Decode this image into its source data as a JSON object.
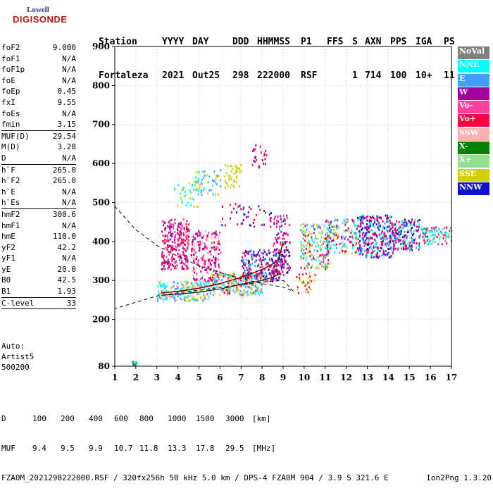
{
  "logo": {
    "line1": "Lowell",
    "line2": "DIGISONDE"
  },
  "header": {
    "row1": [
      "Station",
      "YYYY",
      "DAY",
      "DDD",
      "HHMMSS",
      "P1",
      "FFS",
      "S",
      "AXN",
      "PPS",
      "IGA",
      "PS"
    ],
    "row2": [
      "Fortaleza",
      "2021",
      "Out25",
      "298",
      "222000",
      "RSF",
      "1",
      "714",
      "100",
      "10+",
      "11"
    ]
  },
  "params": [
    {
      "k": "foF2",
      "v": "9.000"
    },
    {
      "k": "foF1",
      "v": "N/A"
    },
    {
      "k": "foF1p",
      "v": "N/A"
    },
    {
      "k": "foE",
      "v": "N/A"
    },
    {
      "k": "foEp",
      "v": "0.45"
    },
    {
      "k": "fxI",
      "v": "9.55"
    },
    {
      "k": "foEs",
      "v": "N/A"
    },
    {
      "k": "fmin",
      "v": "3.15"
    },
    {
      "k": "sep"
    },
    {
      "k": "MUF(D)",
      "v": "29.54"
    },
    {
      "k": "M(D)",
      "v": "3.28"
    },
    {
      "k": "D",
      "v": "N/A"
    },
    {
      "k": "sep"
    },
    {
      "k": "h`F",
      "v": "265.0"
    },
    {
      "k": "h`F2",
      "v": "265.0"
    },
    {
      "k": "h`E",
      "v": "N/A"
    },
    {
      "k": "h`Es",
      "v": "N/A"
    },
    {
      "k": "sep"
    },
    {
      "k": "hmF2",
      "v": "300.6"
    },
    {
      "k": "hmF1",
      "v": "N/A"
    },
    {
      "k": "hmE",
      "v": "110.0"
    },
    {
      "k": "yF2",
      "v": "42.2"
    },
    {
      "k": "yF1",
      "v": "N/A"
    },
    {
      "k": "yE",
      "v": "20.0"
    },
    {
      "k": "B0",
      "v": "42.5"
    },
    {
      "k": "B1",
      "v": "1.93"
    },
    {
      "k": "sep"
    },
    {
      "k": "C-level",
      "v": "33"
    },
    {
      "k": "sep"
    }
  ],
  "auto": [
    "Auto:",
    "Artist5",
    "500200"
  ],
  "legend": [
    {
      "label": "NoVal",
      "bg": "#808080",
      "fg": "#ffffff"
    },
    {
      "label": "NNE",
      "bg": "#00ffff",
      "fg": "#ffffff"
    },
    {
      "label": "E",
      "bg": "#40a0ff",
      "fg": "#ffffff"
    },
    {
      "label": "W",
      "bg": "#a000a0",
      "fg": "#ffffff"
    },
    {
      "label": "Vo-",
      "bg": "#ff40a0",
      "fg": "#ffffff"
    },
    {
      "label": "Vo+",
      "bg": "#ff0040",
      "fg": "#ffffff"
    },
    {
      "label": "SSW",
      "bg": "#ffb0b0",
      "fg": "#ffffff"
    },
    {
      "label": "X-",
      "bg": "#008000",
      "fg": "#ffffff"
    },
    {
      "label": "X+",
      "bg": "#90e090",
      "fg": "#ffffff"
    },
    {
      "label": "SSE",
      "bg": "#d0d000",
      "fg": "#ffffff"
    },
    {
      "label": "NNW",
      "bg": "#1010d0",
      "fg": "#ffffff"
    }
  ],
  "footer": {
    "d_label": "D",
    "d_values": [
      "100",
      "200",
      "400",
      "600",
      "800",
      "1000",
      "1500",
      "3000",
      "[km]"
    ],
    "muf_label": "MUF",
    "muf_values": [
      "9.4",
      "9.5",
      "9.9",
      "10.7",
      "11.8",
      "13.3",
      "17.8",
      "29.5",
      "[MHz]"
    ],
    "info": "FZA0M_2021298222000.RSF / 320fx256h 50 kHz 5.0 km / DPS-4 FZA0M 904 / 3.9 S 321.6 E",
    "version": "Ion2Png 1.3.20"
  },
  "chart_data": {
    "type": "scatter",
    "xlim": [
      1,
      17
    ],
    "ylim": [
      80,
      900
    ],
    "xticks": [
      1,
      2,
      3,
      4,
      5,
      6,
      7,
      8,
      9,
      10,
      11,
      12,
      13,
      14,
      15,
      16,
      17
    ],
    "yticks": [
      80,
      200,
      300,
      400,
      500,
      600,
      700,
      800,
      900
    ],
    "grid": true,
    "legend_position": "right",
    "trace_solid": [
      [
        3.2,
        268
      ],
      [
        4,
        272
      ],
      [
        5,
        280
      ],
      [
        6,
        292
      ],
      [
        7,
        308
      ],
      [
        7.5,
        318
      ],
      [
        8,
        328
      ],
      [
        8.5,
        342
      ],
      [
        8.8,
        355
      ],
      [
        9.0,
        400
      ]
    ],
    "trace_lower": [
      [
        3.2,
        262
      ],
      [
        4,
        265
      ],
      [
        5,
        270
      ],
      [
        6,
        278
      ],
      [
        7,
        290
      ],
      [
        7.5,
        295
      ],
      [
        8,
        300
      ],
      [
        8.5,
        308
      ],
      [
        8.9,
        318
      ]
    ],
    "trace_dashed": [
      [
        1,
        490
      ],
      [
        2,
        430
      ],
      [
        3,
        390
      ],
      [
        4,
        362
      ],
      [
        5,
        338
      ],
      [
        6,
        320
      ],
      [
        7,
        305
      ],
      [
        8,
        292
      ],
      [
        9,
        283
      ],
      [
        9.5,
        272
      ],
      [
        9.0,
        300
      ],
      [
        8,
        296
      ],
      [
        6,
        282
      ],
      [
        4,
        268
      ],
      [
        3,
        260
      ],
      [
        2,
        244
      ],
      [
        1,
        228
      ]
    ],
    "clusters": [
      {
        "x": [
          1.8,
          2.0
        ],
        "y": [
          85,
          95
        ],
        "colors": [
          "#00ffff",
          "#40a0ff",
          "#008000"
        ],
        "n": 18
      },
      {
        "x": [
          3.2,
          4.5
        ],
        "y": [
          330,
          460
        ],
        "colors": [
          "#a000a0",
          "#ff40a0",
          "#ff0040"
        ],
        "n": 260
      },
      {
        "x": [
          4.6,
          6.0
        ],
        "y": [
          300,
          430
        ],
        "colors": [
          "#a000a0",
          "#ffb0b0",
          "#ff40a0",
          "#ff0040"
        ],
        "n": 200
      },
      {
        "x": [
          3.0,
          5.5
        ],
        "y": [
          250,
          300
        ],
        "colors": [
          "#40a0ff",
          "#00ffff",
          "#d0d000",
          "#ffb0b0"
        ],
        "n": 220
      },
      {
        "x": [
          5.5,
          8.0
        ],
        "y": [
          265,
          320
        ],
        "colors": [
          "#d0d000",
          "#40a0ff",
          "#00ffff",
          "#ffb0b0",
          "#ff0040"
        ],
        "n": 260
      },
      {
        "x": [
          7.0,
          9.0
        ],
        "y": [
          300,
          380
        ],
        "colors": [
          "#ff0040",
          "#a000a0",
          "#1010d0",
          "#40a0ff"
        ],
        "n": 240
      },
      {
        "x": [
          8.5,
          9.3
        ],
        "y": [
          320,
          470
        ],
        "colors": [
          "#a000a0",
          "#ff0040",
          "#1010d0",
          "#ff40a0"
        ],
        "n": 120
      },
      {
        "x": [
          3.8,
          5.0
        ],
        "y": [
          490,
          560
        ],
        "colors": [
          "#d0d000",
          "#00ffff"
        ],
        "n": 40
      },
      {
        "x": [
          4.8,
          6.0
        ],
        "y": [
          520,
          590
        ],
        "colors": [
          "#d0d000",
          "#00ffff",
          "#40a0ff"
        ],
        "n": 50
      },
      {
        "x": [
          6.2,
          7.0
        ],
        "y": [
          540,
          600
        ],
        "colors": [
          "#d0d000"
        ],
        "n": 45
      },
      {
        "x": [
          7.5,
          8.2
        ],
        "y": [
          590,
          650
        ],
        "colors": [
          "#ff0040",
          "#a000a0"
        ],
        "n": 25
      },
      {
        "x": [
          6.0,
          8.5
        ],
        "y": [
          440,
          500
        ],
        "colors": [
          "#1010d0",
          "#a000a0",
          "#ff0040"
        ],
        "n": 45
      },
      {
        "x": [
          9.8,
          11.2
        ],
        "y": [
          330,
          450
        ],
        "colors": [
          "#40a0ff",
          "#00ffff",
          "#90e090",
          "#ff0040",
          "#d0d000"
        ],
        "n": 180
      },
      {
        "x": [
          11.0,
          12.5
        ],
        "y": [
          370,
          460
        ],
        "colors": [
          "#00ffff",
          "#40a0ff",
          "#ff0040",
          "#a000a0",
          "#d0d000"
        ],
        "n": 150
      },
      {
        "x": [
          12.5,
          14.2
        ],
        "y": [
          360,
          470
        ],
        "colors": [
          "#1010d0",
          "#40a0ff",
          "#00ffff",
          "#a000a0",
          "#ff0040"
        ],
        "n": 320
      },
      {
        "x": [
          14.2,
          15.5
        ],
        "y": [
          380,
          460
        ],
        "colors": [
          "#1010d0",
          "#40a0ff",
          "#ff0040",
          "#a000a0",
          "#00ffff"
        ],
        "n": 180
      },
      {
        "x": [
          15.5,
          17.0
        ],
        "y": [
          395,
          440
        ],
        "colors": [
          "#ff0040",
          "#40a0ff",
          "#90e090",
          "#00ffff"
        ],
        "n": 110
      },
      {
        "x": [
          9.5,
          10.5
        ],
        "y": [
          270,
          320
        ],
        "colors": [
          "#d0d000",
          "#ff0040"
        ],
        "n": 30
      }
    ]
  }
}
